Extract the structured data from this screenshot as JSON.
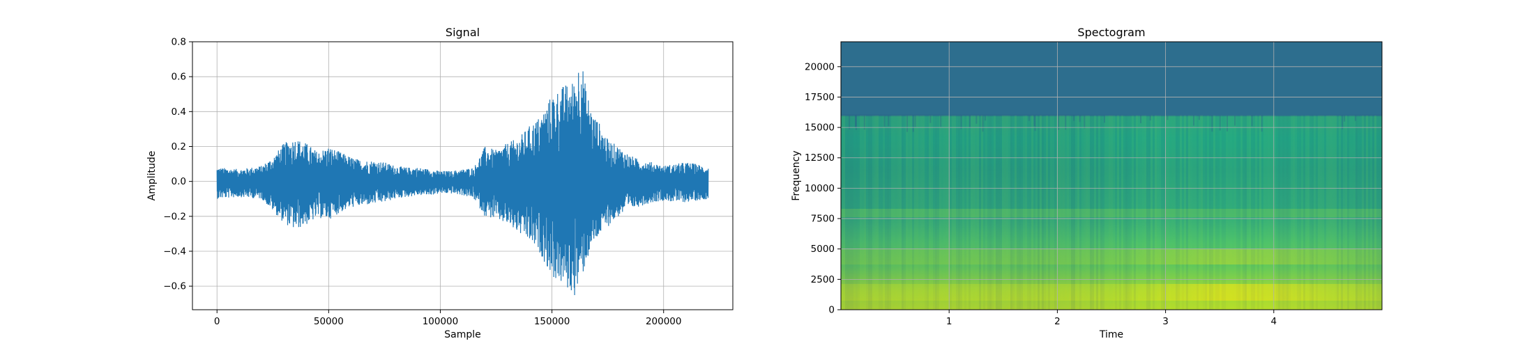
{
  "chart_data": [
    {
      "type": "line",
      "title": "Signal",
      "xlabel": "Sample",
      "ylabel": "Amplitude",
      "xlim": [
        -11000,
        231000
      ],
      "ylim": [
        -0.735,
        0.8
      ],
      "xticks": [
        0,
        50000,
        100000,
        150000,
        200000
      ],
      "xtick_labels": [
        "0",
        "50000",
        "100000",
        "150000",
        "200000"
      ],
      "yticks": [
        -0.6,
        -0.4,
        -0.2,
        0.0,
        0.2,
        0.4,
        0.6,
        0.8
      ],
      "ytick_labels": [
        "−0.6",
        "−0.4",
        "−0.2",
        "0.0",
        "0.2",
        "0.4",
        "0.6",
        "0.8"
      ],
      "grid": true,
      "color": "#1f77b4",
      "envelope": {
        "x": [
          0,
          10000,
          20000,
          25000,
          30000,
          35000,
          40000,
          45000,
          50000,
          55000,
          60000,
          65000,
          70000,
          75000,
          80000,
          85000,
          90000,
          95000,
          100000,
          105000,
          110000,
          115000,
          120000,
          125000,
          130000,
          135000,
          140000,
          145000,
          150000,
          155000,
          160000,
          163000,
          165000,
          168000,
          172000,
          175000,
          180000,
          185000,
          190000,
          195000,
          200000,
          205000,
          210000,
          215000,
          220000
        ],
        "upper": [
          0.08,
          0.07,
          0.09,
          0.14,
          0.22,
          0.25,
          0.22,
          0.17,
          0.2,
          0.17,
          0.14,
          0.12,
          0.12,
          0.11,
          0.09,
          0.08,
          0.08,
          0.07,
          0.06,
          0.06,
          0.07,
          0.08,
          0.2,
          0.18,
          0.22,
          0.25,
          0.32,
          0.38,
          0.5,
          0.55,
          0.58,
          0.74,
          0.55,
          0.4,
          0.32,
          0.24,
          0.2,
          0.15,
          0.12,
          0.11,
          0.09,
          0.1,
          0.11,
          0.1,
          0.08
        ],
        "lower": [
          -0.1,
          -0.09,
          -0.1,
          -0.17,
          -0.24,
          -0.28,
          -0.25,
          -0.21,
          -0.22,
          -0.18,
          -0.15,
          -0.14,
          -0.13,
          -0.12,
          -0.1,
          -0.09,
          -0.08,
          -0.08,
          -0.07,
          -0.07,
          -0.08,
          -0.1,
          -0.2,
          -0.22,
          -0.25,
          -0.3,
          -0.35,
          -0.42,
          -0.55,
          -0.6,
          -0.66,
          -0.58,
          -0.48,
          -0.38,
          -0.3,
          -0.26,
          -0.2,
          -0.16,
          -0.14,
          -0.12,
          -0.11,
          -0.12,
          -0.12,
          -0.11,
          -0.1
        ]
      }
    },
    {
      "type": "heatmap",
      "title": "Spectogram",
      "xlabel": "Time",
      "ylabel": "Frequency",
      "xlim": [
        0,
        5.0
      ],
      "ylim": [
        0,
        22050
      ],
      "xticks": [
        1,
        2,
        3,
        4
      ],
      "xtick_labels": [
        "1",
        "2",
        "3",
        "4"
      ],
      "yticks": [
        0,
        2500,
        5000,
        7500,
        10000,
        12500,
        15000,
        17500,
        20000
      ],
      "ytick_labels": [
        "0",
        "2500",
        "5000",
        "7500",
        "10000",
        "12500",
        "15000",
        "17500",
        "20000"
      ],
      "grid": true,
      "colormap": "viridis",
      "colors": {
        "cutoff_band": "#2d6e8e",
        "low_energy": "#21908d",
        "mid_energy": "#35b779",
        "high_energy": "#bddf26"
      },
      "cutoff_frequency": 16000,
      "bright_bands_hz": [
        1500,
        4500,
        8000
      ]
    }
  ]
}
